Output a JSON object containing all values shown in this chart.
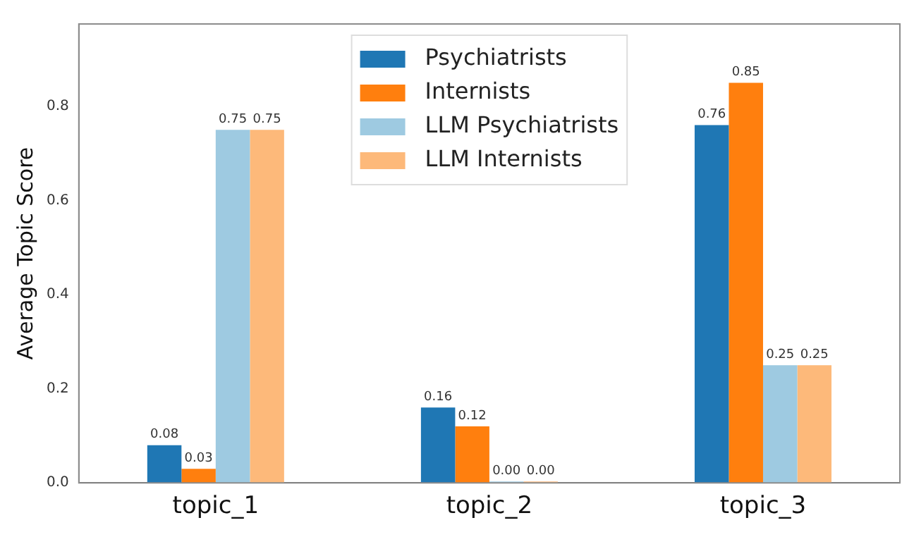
{
  "chart_data": {
    "type": "bar",
    "ylabel": "Average Topic Score",
    "categories": [
      "topic_1",
      "topic_2",
      "topic_3"
    ],
    "series": [
      {
        "name": "Psychiatrists",
        "color": "#1f77b4",
        "values": [
          0.08,
          0.16,
          0.76
        ],
        "value_labels": [
          "0.08",
          "0.16",
          "0.76"
        ]
      },
      {
        "name": "Internists",
        "color": "#ff7f0e",
        "values": [
          0.03,
          0.12,
          0.85
        ],
        "value_labels": [
          "0.03",
          "0.12",
          "0.85"
        ]
      },
      {
        "name": "LLM Psychiatrists",
        "color": "#9ecae1",
        "values": [
          0.75,
          0.0,
          0.25
        ],
        "value_labels": [
          "0.75",
          "0.00",
          "0.25"
        ]
      },
      {
        "name": "LLM Internists",
        "color": "#fdb97a",
        "values": [
          0.75,
          0.0,
          0.25
        ],
        "value_labels": [
          "0.75",
          "0.00",
          "0.25"
        ]
      }
    ],
    "ylim": [
      0,
      0.975
    ],
    "yticks": [
      {
        "value": 0,
        "label": "0.0"
      },
      0.2,
      0.4,
      0.6,
      0.8
    ],
    "grid": false,
    "legend": "top"
  }
}
